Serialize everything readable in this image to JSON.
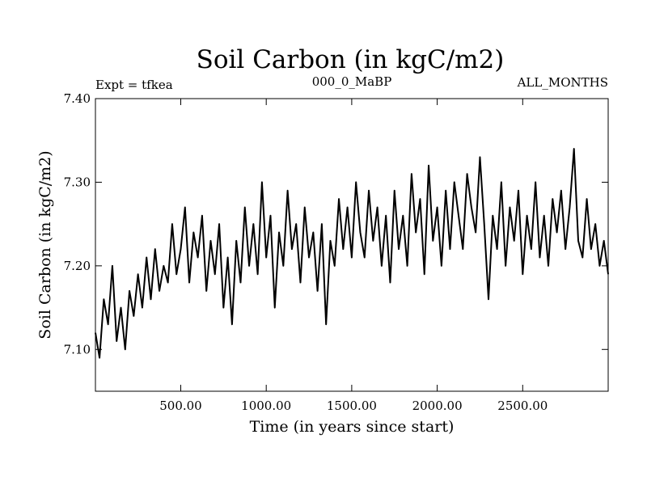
{
  "chart_data": {
    "type": "line",
    "title": "Soil Carbon (in kgC/m2)",
    "subtitle_left": "Expt = tfkea",
    "subtitle_center": "000_0_MaBP",
    "subtitle_right": "ALL_MONTHS",
    "xlabel": "Time (in years since start)",
    "ylabel": "Soil Carbon (in kgC/m2)",
    "xlim": [
      1,
      3000
    ],
    "ylim": [
      7.05,
      7.4
    ],
    "xticks": [
      500,
      1000,
      1500,
      2000,
      2500
    ],
    "xtick_labels": [
      "500.00",
      "1000.00",
      "1500.00",
      "2000.00",
      "2500.00"
    ],
    "yticks": [
      7.1,
      7.2,
      7.3,
      7.4
    ],
    "ytick_labels": [
      "7.10",
      "7.20",
      "7.30",
      "7.40"
    ],
    "grid": false,
    "series": [
      {
        "color": "#000000",
        "x": [
          0,
          25,
          50,
          75,
          100,
          125,
          150,
          175,
          200,
          225,
          250,
          275,
          300,
          325,
          350,
          375,
          400,
          425,
          450,
          475,
          500,
          525,
          550,
          575,
          600,
          625,
          650,
          675,
          700,
          725,
          750,
          775,
          800,
          825,
          850,
          875,
          900,
          925,
          950,
          975,
          1000,
          1025,
          1050,
          1075,
          1100,
          1125,
          1150,
          1175,
          1200,
          1225,
          1250,
          1275,
          1300,
          1325,
          1350,
          1375,
          1400,
          1425,
          1450,
          1475,
          1500,
          1525,
          1550,
          1575,
          1600,
          1625,
          1650,
          1675,
          1700,
          1725,
          1750,
          1775,
          1800,
          1825,
          1850,
          1875,
          1900,
          1925,
          1950,
          1975,
          2000,
          2025,
          2050,
          2075,
          2100,
          2125,
          2150,
          2175,
          2200,
          2225,
          2250,
          2275,
          2300,
          2325,
          2350,
          2375,
          2400,
          2425,
          2450,
          2475,
          2500,
          2525,
          2550,
          2575,
          2600,
          2625,
          2650,
          2675,
          2700,
          2725,
          2750,
          2775,
          2800,
          2825,
          2850,
          2875,
          2900,
          2925,
          2950,
          2975,
          3000
        ],
        "y": [
          7.12,
          7.09,
          7.16,
          7.13,
          7.2,
          7.11,
          7.15,
          7.1,
          7.17,
          7.14,
          7.19,
          7.15,
          7.21,
          7.16,
          7.22,
          7.17,
          7.2,
          7.18,
          7.25,
          7.19,
          7.22,
          7.27,
          7.18,
          7.24,
          7.21,
          7.26,
          7.17,
          7.23,
          7.19,
          7.25,
          7.15,
          7.21,
          7.13,
          7.23,
          7.18,
          7.27,
          7.2,
          7.25,
          7.19,
          7.3,
          7.21,
          7.26,
          7.15,
          7.24,
          7.2,
          7.29,
          7.22,
          7.25,
          7.18,
          7.27,
          7.21,
          7.24,
          7.17,
          7.25,
          7.13,
          7.23,
          7.2,
          7.28,
          7.22,
          7.27,
          7.21,
          7.3,
          7.24,
          7.21,
          7.29,
          7.23,
          7.27,
          7.2,
          7.26,
          7.18,
          7.29,
          7.22,
          7.26,
          7.2,
          7.31,
          7.24,
          7.28,
          7.19,
          7.32,
          7.23,
          7.27,
          7.2,
          7.29,
          7.22,
          7.3,
          7.26,
          7.22,
          7.31,
          7.27,
          7.24,
          7.33,
          7.25,
          7.16,
          7.26,
          7.22,
          7.3,
          7.2,
          7.27,
          7.23,
          7.29,
          7.19,
          7.26,
          7.22,
          7.3,
          7.21,
          7.26,
          7.2,
          7.28,
          7.24,
          7.29,
          7.22,
          7.27,
          7.34,
          7.23,
          7.21,
          7.28,
          7.22,
          7.25,
          7.2,
          7.23,
          7.19
        ]
      }
    ]
  }
}
